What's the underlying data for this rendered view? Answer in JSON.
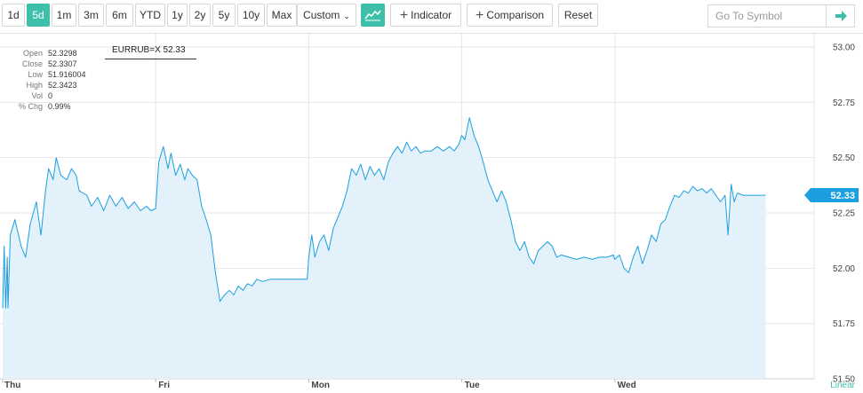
{
  "toolbar": {
    "ranges": [
      {
        "label": "1d",
        "active": false
      },
      {
        "label": "5d",
        "active": true
      },
      {
        "label": "1m",
        "active": false
      },
      {
        "label": "3m",
        "active": false
      },
      {
        "label": "6m",
        "active": false
      },
      {
        "label": "YTD",
        "active": false
      },
      {
        "label": "1y",
        "active": false
      },
      {
        "label": "2y",
        "active": false
      },
      {
        "label": "5y",
        "active": false
      },
      {
        "label": "10y",
        "active": false
      },
      {
        "label": "Max",
        "active": false
      }
    ],
    "custom_label": "Custom",
    "chart_type_icon": "area-chart-icon",
    "indicator_label": "Indicator",
    "comparison_label": "Comparison",
    "reset_label": "Reset",
    "symbol_placeholder": "Go To Symbol",
    "go_icon": "arrow-right-icon"
  },
  "info": {
    "open_label": "Open",
    "open": "52.3298",
    "close_label": "Close",
    "close": "52.3307",
    "low_label": "Low",
    "low": "51.916004",
    "high_label": "High",
    "high": "52.3423",
    "vol_label": "Vol",
    "vol": "0",
    "chg_label": "% Chg",
    "chg": "0.99%"
  },
  "symbol_label": "EURRUB=X 52.33",
  "colors": {
    "accent": "#3ebfa9",
    "line": "#1c9fe0",
    "fill": "#e3f1fb",
    "badge": "#1c9fe0"
  },
  "chart_data": {
    "type": "area",
    "scale": "linear",
    "scale_label": "Linear",
    "ylim": [
      51.5,
      53.0
    ],
    "y_ticks": [
      "53.00",
      "52.75",
      "52.50",
      "52.25",
      "52.00",
      "51.75",
      "51.50"
    ],
    "x_ticks": [
      "Thu",
      "Fri",
      "Mon",
      "Tue",
      "Wed"
    ],
    "x_range": [
      0,
      5
    ],
    "grid": true,
    "last_value": "52.33",
    "series": [
      {
        "points": [
          [
            0.0,
            51.82
          ],
          [
            0.01,
            52.1
          ],
          [
            0.02,
            51.82
          ],
          [
            0.03,
            52.05
          ],
          [
            0.035,
            51.82
          ],
          [
            0.05,
            52.15
          ],
          [
            0.08,
            52.22
          ],
          [
            0.12,
            52.1
          ],
          [
            0.15,
            52.05
          ],
          [
            0.18,
            52.2
          ],
          [
            0.22,
            52.3
          ],
          [
            0.25,
            52.15
          ],
          [
            0.28,
            52.35
          ],
          [
            0.3,
            52.45
          ],
          [
            0.33,
            52.4
          ],
          [
            0.35,
            52.5
          ],
          [
            0.38,
            52.42
          ],
          [
            0.42,
            52.4
          ],
          [
            0.45,
            52.45
          ],
          [
            0.48,
            52.42
          ],
          [
            0.5,
            52.35
          ],
          [
            0.55,
            52.33
          ],
          [
            0.58,
            52.28
          ],
          [
            0.62,
            52.32
          ],
          [
            0.66,
            52.26
          ],
          [
            0.7,
            52.33
          ],
          [
            0.74,
            52.28
          ],
          [
            0.78,
            52.32
          ],
          [
            0.82,
            52.27
          ],
          [
            0.86,
            52.3
          ],
          [
            0.9,
            52.26
          ],
          [
            0.94,
            52.28
          ],
          [
            0.97,
            52.26
          ],
          [
            1.0,
            52.27
          ],
          [
            1.02,
            52.48
          ],
          [
            1.05,
            52.55
          ],
          [
            1.08,
            52.45
          ],
          [
            1.1,
            52.52
          ],
          [
            1.13,
            52.42
          ],
          [
            1.16,
            52.47
          ],
          [
            1.19,
            52.4
          ],
          [
            1.21,
            52.45
          ],
          [
            1.24,
            52.42
          ],
          [
            1.27,
            52.4
          ],
          [
            1.3,
            52.28
          ],
          [
            1.33,
            52.22
          ],
          [
            1.36,
            52.15
          ],
          [
            1.39,
            51.98
          ],
          [
            1.42,
            51.85
          ],
          [
            1.45,
            51.88
          ],
          [
            1.48,
            51.9
          ],
          [
            1.51,
            51.88
          ],
          [
            1.54,
            51.92
          ],
          [
            1.57,
            51.9
          ],
          [
            1.6,
            51.93
          ],
          [
            1.63,
            51.92
          ],
          [
            1.66,
            51.95
          ],
          [
            1.7,
            51.94
          ],
          [
            1.75,
            51.95
          ],
          [
            1.85,
            51.95
          ],
          [
            1.95,
            51.95
          ],
          [
            1.99,
            51.95
          ],
          [
            2.0,
            52.05
          ],
          [
            2.02,
            52.15
          ],
          [
            2.04,
            52.05
          ],
          [
            2.07,
            52.12
          ],
          [
            2.1,
            52.15
          ],
          [
            2.13,
            52.08
          ],
          [
            2.16,
            52.18
          ],
          [
            2.19,
            52.23
          ],
          [
            2.22,
            52.28
          ],
          [
            2.25,
            52.35
          ],
          [
            2.28,
            52.45
          ],
          [
            2.31,
            52.42
          ],
          [
            2.34,
            52.47
          ],
          [
            2.37,
            52.4
          ],
          [
            2.4,
            52.46
          ],
          [
            2.43,
            52.42
          ],
          [
            2.46,
            52.45
          ],
          [
            2.49,
            52.4
          ],
          [
            2.52,
            52.48
          ],
          [
            2.55,
            52.52
          ],
          [
            2.58,
            52.55
          ],
          [
            2.61,
            52.52
          ],
          [
            2.64,
            52.57
          ],
          [
            2.67,
            52.53
          ],
          [
            2.7,
            52.55
          ],
          [
            2.73,
            52.52
          ],
          [
            2.76,
            52.53
          ],
          [
            2.8,
            52.53
          ],
          [
            2.84,
            52.55
          ],
          [
            2.88,
            52.53
          ],
          [
            2.92,
            52.55
          ],
          [
            2.95,
            52.53
          ],
          [
            2.98,
            52.56
          ],
          [
            3.0,
            52.6
          ],
          [
            3.02,
            52.58
          ],
          [
            3.05,
            52.68
          ],
          [
            3.08,
            52.6
          ],
          [
            3.11,
            52.55
          ],
          [
            3.14,
            52.48
          ],
          [
            3.17,
            52.4
          ],
          [
            3.2,
            52.35
          ],
          [
            3.23,
            52.3
          ],
          [
            3.26,
            52.35
          ],
          [
            3.29,
            52.3
          ],
          [
            3.32,
            52.22
          ],
          [
            3.35,
            52.12
          ],
          [
            3.38,
            52.08
          ],
          [
            3.41,
            52.12
          ],
          [
            3.44,
            52.05
          ],
          [
            3.47,
            52.02
          ],
          [
            3.5,
            52.08
          ],
          [
            3.53,
            52.1
          ],
          [
            3.56,
            52.12
          ],
          [
            3.59,
            52.1
          ],
          [
            3.62,
            52.05
          ],
          [
            3.65,
            52.06
          ],
          [
            3.7,
            52.05
          ],
          [
            3.75,
            52.04
          ],
          [
            3.8,
            52.05
          ],
          [
            3.85,
            52.04
          ],
          [
            3.9,
            52.05
          ],
          [
            3.95,
            52.05
          ],
          [
            3.99,
            52.06
          ],
          [
            4.0,
            52.04
          ],
          [
            4.03,
            52.06
          ],
          [
            4.06,
            52.0
          ],
          [
            4.09,
            51.98
          ],
          [
            4.12,
            52.05
          ],
          [
            4.15,
            52.1
          ],
          [
            4.18,
            52.02
          ],
          [
            4.21,
            52.08
          ],
          [
            4.24,
            52.15
          ],
          [
            4.27,
            52.12
          ],
          [
            4.3,
            52.2
          ],
          [
            4.33,
            52.22
          ],
          [
            4.36,
            52.28
          ],
          [
            4.39,
            52.33
          ],
          [
            4.42,
            52.32
          ],
          [
            4.45,
            52.35
          ],
          [
            4.48,
            52.34
          ],
          [
            4.51,
            52.37
          ],
          [
            4.54,
            52.35
          ],
          [
            4.57,
            52.36
          ],
          [
            4.6,
            52.34
          ],
          [
            4.63,
            52.36
          ],
          [
            4.66,
            52.33
          ],
          [
            4.69,
            52.3
          ],
          [
            4.72,
            52.33
          ],
          [
            4.74,
            52.15
          ],
          [
            4.76,
            52.38
          ],
          [
            4.78,
            52.3
          ],
          [
            4.8,
            52.34
          ],
          [
            4.84,
            52.33
          ],
          [
            4.88,
            52.33
          ],
          [
            4.92,
            52.33
          ],
          [
            4.96,
            52.33
          ],
          [
            4.985,
            52.33
          ]
        ]
      }
    ]
  }
}
